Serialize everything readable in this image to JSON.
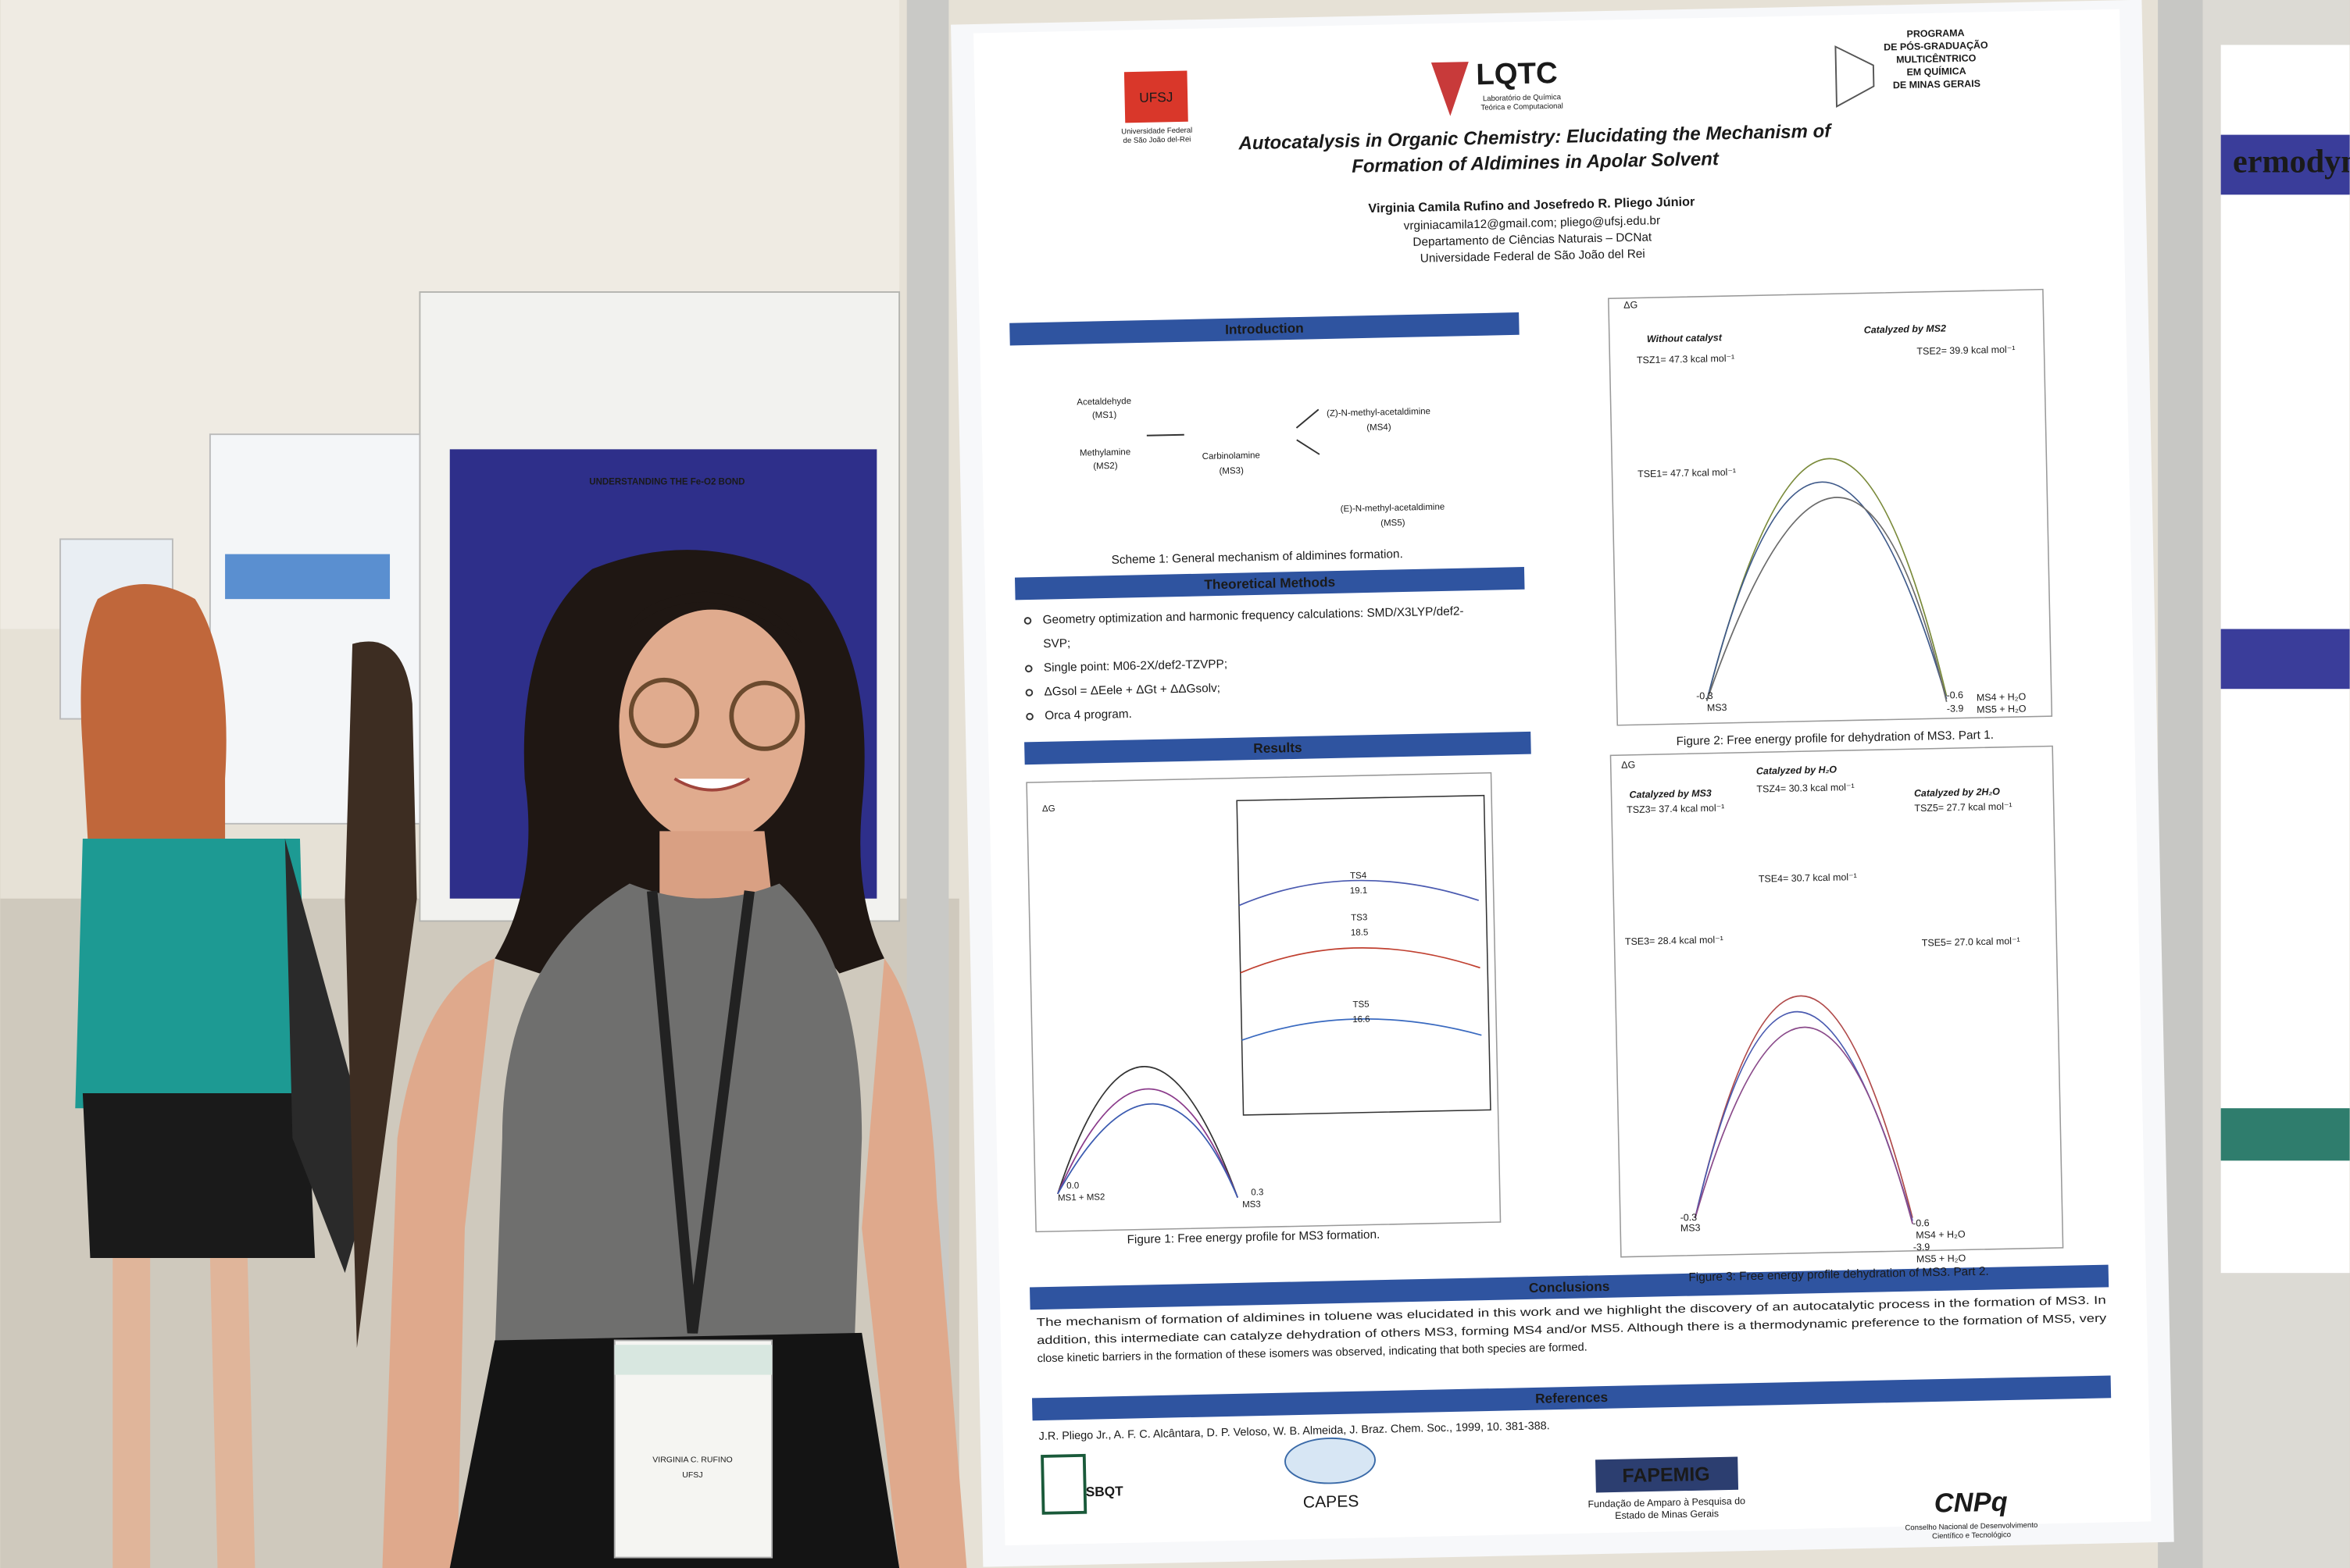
{
  "poster": {
    "logos": {
      "ufsj": "UFSJ",
      "ufsj_name": [
        "Universidade Federal",
        "de São João del-Rei"
      ],
      "lqtc": "LQTC",
      "lqtc_name": [
        "Laboratório de Química",
        "Teórica e Computacional"
      ],
      "program": [
        "PROGRAMA",
        "DE PÓS-GRADUAÇÃO",
        "MULTICÊNTRICO",
        "EM QUÍMICA",
        "DE MINAS GERAIS"
      ]
    },
    "title": [
      "Autocatalysis in Organic Chemistry: Elucidating the Mechanism of",
      "Formation of Aldimines in Apolar Solvent"
    ],
    "authors": "Virginia Camila Rufino and Josefredo R. Pliego Júnior",
    "affiliation": [
      "vrginiacamila12@gmail.com; pliego@ufsj.edu.br",
      "Departamento de Ciências  Naturais – DCNat",
      "Universidade Federal de São João del Rei"
    ],
    "introduction": {
      "heading": "Introduction",
      "scheme_labels": [
        "Acetaldehyde",
        "(MS1)",
        "Methylamine",
        "(MS2)",
        "Carbinolamine",
        "(MS3)",
        "(Z)-N-methyl-acetaldimine",
        "(MS4)",
        "(E)-N-methyl-acetaldimine",
        "(MS5)"
      ],
      "caption": "Scheme 1: General mechanism of aldimines formation."
    },
    "methods": {
      "heading": "Theoretical Methods",
      "items": [
        "Geometry optimization and harmonic frequency calculations: SMD/X3LYP/def2-",
        "SVP;",
        "Single point: M06-2X/def2-TZVPP;",
        "ΔGsol = ΔEele + ΔGt + ΔΔGsolv;",
        "Orca 4 program."
      ]
    },
    "results": {
      "heading": "Results",
      "figure1": {
        "labels": [
          "ΔG",
          "MS1 + MS2",
          "0.0",
          "MS3",
          "0.3",
          "TS4",
          "19.1",
          "TS3",
          "18.5",
          "TS5",
          "16.6"
        ],
        "caption": "Figure 1: Free energy profile for MS3 formation."
      },
      "figure2": {
        "labels": [
          "ΔG",
          "Without catalyst",
          "Catalyzed by MS2",
          "TSZ1= 47.3 kcal mol⁻¹",
          "TSE2= 39.9 kcal mol⁻¹",
          "TSE1= 47.7 kcal mol⁻¹",
          "-0.3",
          "MS3",
          "-0.6",
          "MS4 + H₂O",
          "-3.9",
          "MS5 + H₂O"
        ],
        "caption": "Figure 2: Free energy profile for dehydration of MS3. Part 1."
      },
      "figure3": {
        "labels": [
          "ΔG",
          "Catalyzed by MS3",
          "Catalyzed by H₂O",
          "Catalyzed by 2H₂O",
          "TSZ3= 37.4 kcal mol⁻¹",
          "TSZ4= 30.3 kcal mol⁻¹",
          "TSZ5= 27.7 kcal mol⁻¹",
          "TSE3= 28.4 kcal mol⁻¹",
          "TSE4= 30.7 kcal mol⁻¹",
          "TSE5= 27.0 kcal mol⁻¹",
          "-0.3",
          "MS3",
          "-0.6",
          "MS4 + H₂O",
          "-3.9",
          "MS5 + H₂O"
        ],
        "caption": "Figure 3: Free energy profile dehydration of MS3. Part 2."
      }
    },
    "conclusions": {
      "heading": "Conclusions",
      "lines": [
        "The mechanism of formation of aldimines in toluene was elucidated in this work and we highlight the discovery of an autocatalytic process in the formation of MS3. In",
        "addition, this intermediate can catalyze dehydration of others MS3, forming MS4 and/or MS5. Although there is a thermodynamic preference to the formation of MS5, very",
        "close kinetic barriers in the formation of these isomers was observed, indicating that both species are formed."
      ]
    },
    "references": {
      "heading": "References",
      "text": "J.R. Pliego Jr., A. F. C. Alcântara, D. P. Veloso, W. B. Almeida, J. Braz. Chem. Soc., 1999, 10. 381-388."
    },
    "sponsors": {
      "sbqt": "SBQT",
      "capes": "CAPES",
      "fapemig": "FAPEMIG",
      "fapemig_name": [
        "Fundação de Amparo à Pesquisa do",
        "Estado de Minas Gerais"
      ],
      "cnpq": "CNPq",
      "cnpq_name": [
        "Conselho Nacional de Desenvolvimento",
        "Científico e Tecnológico"
      ]
    }
  },
  "badge": {
    "name": "VIRGINIA C. RUFINO",
    "institution": "UFSJ"
  },
  "background": {
    "left_poster_title": "UNDERSTANDING THE Fe-O2 BOND",
    "right_poster_title": "ermodyn"
  }
}
